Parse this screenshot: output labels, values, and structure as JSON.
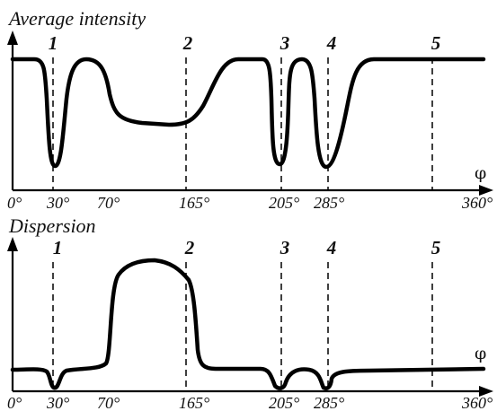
{
  "chart_data": [
    {
      "type": "line",
      "title": "Average intensity",
      "xlabel": "φ",
      "x_ticks": [
        "0°",
        "30°",
        "70°",
        "165°",
        "205°",
        "285°",
        "360°"
      ],
      "markers": [
        {
          "label": "1",
          "x": 30
        },
        {
          "label": "2",
          "x": 165
        },
        {
          "label": "3",
          "x": 205
        },
        {
          "label": "4",
          "x": 285
        },
        {
          "label": "5",
          "x": 360
        }
      ],
      "x": [
        0,
        30,
        70,
        165,
        205,
        285,
        360
      ],
      "y": [
        0.95,
        0.05,
        0.95,
        0.45,
        0.05,
        0.05,
        0.95
      ]
    },
    {
      "type": "line",
      "title": "Dispersion",
      "xlabel": "φ",
      "x_ticks": [
        "0°",
        "30°",
        "70°",
        "165°",
        "205°",
        "285°",
        "360°"
      ],
      "markers": [
        {
          "label": "1",
          "x": 30
        },
        {
          "label": "2",
          "x": 165
        },
        {
          "label": "3",
          "x": 205
        },
        {
          "label": "4",
          "x": 285
        },
        {
          "label": "5",
          "x": 360
        }
      ],
      "x": [
        0,
        30,
        70,
        165,
        205,
        285,
        360
      ],
      "y": [
        0.05,
        0,
        0.05,
        0.75,
        0,
        0,
        0.05
      ]
    }
  ]
}
